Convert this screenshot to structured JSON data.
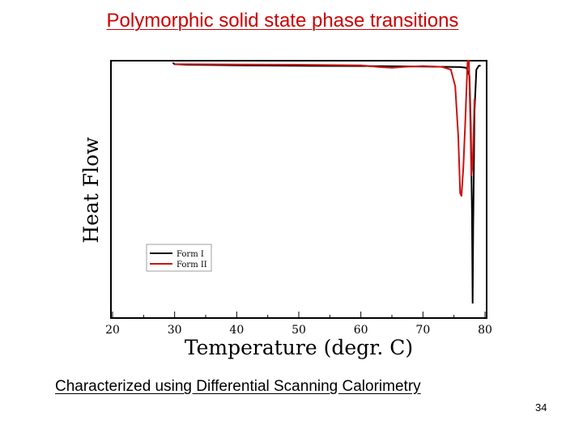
{
  "slide": {
    "title": "Polymorphic solid state phase transitions",
    "subtitle": "Characterized using Differential Scanning Calorimetry",
    "page_number": "34"
  },
  "colors": {
    "title": "#cc0000",
    "form1": "#000000",
    "form2": "#cc1111"
  },
  "chart_data": {
    "type": "line",
    "title": "",
    "xlabel": "Temperature (degr. C)",
    "ylabel": "Heat Flow",
    "xlim": [
      20,
      80
    ],
    "ylim": [
      0,
      100
    ],
    "xticks": [
      20,
      30,
      40,
      50,
      60,
      70,
      80
    ],
    "xticklabels": [
      "20",
      "30",
      "40",
      "50",
      "60",
      "70",
      "80"
    ],
    "y_tick_labels_shown": false,
    "grid": false,
    "legend_position": "lower-left",
    "series": [
      {
        "name": "Form I",
        "color": "#000000",
        "x": [
          29.7,
          30.0,
          32,
          40,
          50,
          60,
          65,
          70,
          74,
          76,
          77,
          77.5,
          77.7,
          77.9,
          78.0,
          78.1,
          78.3,
          78.6,
          79.0,
          79.3
        ],
        "y": [
          99.2,
          98.6,
          98.4,
          98.2,
          98.0,
          97.9,
          97.8,
          97.7,
          97.6,
          97.5,
          97.2,
          94,
          75,
          40,
          5,
          35,
          80,
          96.5,
          98.0,
          98.0
        ]
      },
      {
        "name": "Form II",
        "color": "#cc1111",
        "x": [
          30.0,
          32,
          40,
          50,
          60,
          63,
          65,
          67,
          70,
          73,
          74.5,
          75.2,
          75.7,
          76.0,
          76.2,
          76.5,
          76.8,
          77.0,
          77.2,
          77.4,
          77.6,
          77.8,
          78.0,
          78.3
        ],
        "y": [
          98.6,
          98.6,
          98.5,
          98.4,
          98.2,
          97.5,
          97.2,
          97.6,
          97.9,
          97.6,
          96.5,
          90,
          70,
          48,
          47,
          58,
          75,
          88,
          100,
          100,
          80,
          55,
          59,
          85
        ]
      }
    ]
  }
}
